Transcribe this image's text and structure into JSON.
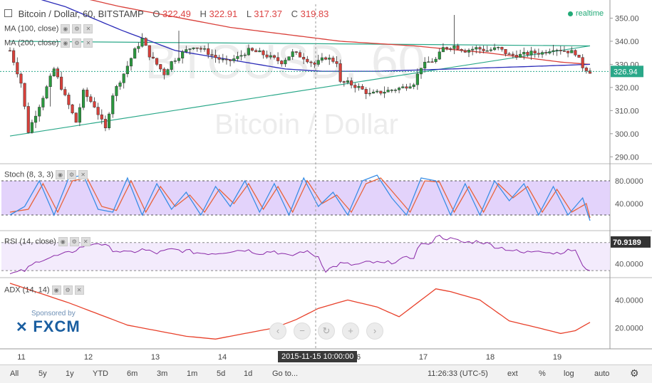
{
  "header": {
    "symbol": "Bitcoin / Dollar, 60, BITSTAMP",
    "o_label": "O",
    "o_value": "322.49",
    "h_label": "H",
    "h_value": "322.91",
    "l_label": "L",
    "l_value": "317.37",
    "c_label": "C",
    "c_value": "319.83",
    "realtime": "realtime",
    "ma1": "MA (100, close)",
    "ma2": "MA (200, close)"
  },
  "watermark": {
    "line1": "BTCUSD, 60",
    "line2": "Bitcoin / Dollar"
  },
  "panes": {
    "stoch": "Stoch (8, 3, 3)",
    "rsi": "RSI (14, close)",
    "adx": "ADX (14, 14)"
  },
  "sponsor": {
    "label": "Sponsored by",
    "brand": "FXCM"
  },
  "crosshair_time": "2015-11-15 10:00:00",
  "clock": "11:26:33 (UTC-5)",
  "bottom_left": [
    "All",
    "5y",
    "1y",
    "YTD",
    "6m",
    "3m",
    "1m",
    "5d",
    "1d",
    "Go to..."
  ],
  "bottom_right": [
    "ext",
    "%",
    "log",
    "auto"
  ],
  "colors": {
    "up": "#2b9a3f",
    "down": "#d9403a",
    "ma100": "#2b2bb8",
    "ma200": "#d9403a",
    "trend": "#2aa889",
    "stoch_k": "#3a8ee6",
    "stoch_d": "#e8643c",
    "band": "#e3d3fb",
    "rsi": "#8a2aa8",
    "adx": "#e8402a"
  },
  "chart_data": {
    "type": "candlestick",
    "x_ticks": [
      "11",
      "12",
      "13",
      "14",
      "15",
      "16",
      "17",
      "18",
      "19"
    ],
    "price_axis": {
      "ticks": [
        "290.00",
        "300.00",
        "310.00",
        "320.00",
        "330.00",
        "340.00",
        "350.00"
      ],
      "range": [
        287,
        356
      ],
      "last_price": "326.94"
    },
    "price_path": [
      [
        0,
        336
      ],
      [
        3,
        322
      ],
      [
        5,
        301
      ],
      [
        9,
        316
      ],
      [
        12,
        328
      ],
      [
        15,
        316
      ],
      [
        18,
        305
      ],
      [
        20,
        318
      ],
      [
        23,
        312
      ],
      [
        26,
        302
      ],
      [
        28,
        317
      ],
      [
        31,
        326
      ],
      [
        34,
        336
      ],
      [
        36,
        341
      ],
      [
        38,
        334
      ],
      [
        40,
        330
      ],
      [
        42,
        326
      ],
      [
        44,
        331
      ],
      [
        47,
        335
      ],
      [
        50,
        338
      ],
      [
        53,
        336
      ],
      [
        56,
        333
      ],
      [
        59,
        331
      ],
      [
        62,
        333
      ],
      [
        65,
        336
      ],
      [
        68,
        335
      ],
      [
        71,
        333
      ],
      [
        74,
        331
      ],
      [
        77,
        335
      ],
      [
        80,
        333
      ],
      [
        83,
        330
      ],
      [
        86,
        333
      ],
      [
        89,
        331
      ],
      [
        90,
        322
      ],
      [
        92,
        322
      ],
      [
        95,
        320
      ],
      [
        98,
        317
      ],
      [
        101,
        318
      ],
      [
        104,
        319
      ],
      [
        107,
        320
      ],
      [
        110,
        322
      ],
      [
        112,
        329
      ],
      [
        114,
        331
      ],
      [
        116,
        332
      ],
      [
        118,
        337
      ],
      [
        121,
        338
      ],
      [
        124,
        336
      ],
      [
        127,
        337
      ],
      [
        130,
        336
      ],
      [
        133,
        337
      ],
      [
        136,
        334
      ],
      [
        139,
        334
      ],
      [
        142,
        335
      ],
      [
        145,
        335
      ],
      [
        148,
        337
      ],
      [
        151,
        336
      ],
      [
        154,
        335
      ],
      [
        156,
        329
      ],
      [
        158,
        326.9
      ]
    ],
    "ma100": {
      "name": "MA (100, close)",
      "points": [
        [
          0,
          362
        ],
        [
          15,
          355
        ],
        [
          30,
          345
        ],
        [
          45,
          336
        ],
        [
          60,
          332
        ],
        [
          75,
          328
        ],
        [
          85,
          327
        ],
        [
          100,
          327
        ],
        [
          120,
          328
        ],
        [
          140,
          329
        ],
        [
          158,
          330
        ]
      ]
    },
    "ma200": {
      "name": "MA (200, close)",
      "points": [
        [
          0,
          366
        ],
        [
          30,
          355
        ],
        [
          60,
          346
        ],
        [
          90,
          340
        ],
        [
          110,
          338
        ],
        [
          130,
          335
        ],
        [
          150,
          331
        ],
        [
          158,
          330
        ]
      ]
    },
    "trendlines": [
      {
        "from": [
          0,
          299
        ],
        "to": [
          158,
          338
        ]
      },
      {
        "from": [
          0,
          340
        ],
        "to": [
          158,
          338
        ]
      }
    ],
    "stoch": {
      "ticks": [
        "40.0000",
        "80.0000"
      ],
      "range": [
        0,
        100
      ],
      "bands": [
        20,
        80
      ],
      "k": [
        [
          0,
          20
        ],
        [
          4,
          35
        ],
        [
          8,
          80
        ],
        [
          12,
          20
        ],
        [
          16,
          85
        ],
        [
          20,
          90
        ],
        [
          24,
          30
        ],
        [
          28,
          25
        ],
        [
          32,
          85
        ],
        [
          36,
          20
        ],
        [
          40,
          75
        ],
        [
          44,
          30
        ],
        [
          48,
          60
        ],
        [
          52,
          20
        ],
        [
          56,
          70
        ],
        [
          60,
          35
        ],
        [
          64,
          80
        ],
        [
          68,
          25
        ],
        [
          72,
          75
        ],
        [
          76,
          20
        ],
        [
          80,
          85
        ],
        [
          84,
          35
        ],
        [
          88,
          60
        ],
        [
          92,
          20
        ],
        [
          96,
          80
        ],
        [
          100,
          90
        ],
        [
          104,
          50
        ],
        [
          108,
          20
        ],
        [
          112,
          85
        ],
        [
          116,
          80
        ],
        [
          120,
          20
        ],
        [
          124,
          75
        ],
        [
          128,
          20
        ],
        [
          132,
          80
        ],
        [
          136,
          45
        ],
        [
          140,
          75
        ],
        [
          144,
          20
        ],
        [
          148,
          70
        ],
        [
          152,
          20
        ],
        [
          156,
          50
        ],
        [
          158,
          10
        ]
      ],
      "d": [
        [
          0,
          25
        ],
        [
          5,
          30
        ],
        [
          9,
          75
        ],
        [
          13,
          25
        ],
        [
          17,
          80
        ],
        [
          21,
          85
        ],
        [
          25,
          35
        ],
        [
          29,
          28
        ],
        [
          33,
          80
        ],
        [
          37,
          25
        ],
        [
          41,
          70
        ],
        [
          45,
          35
        ],
        [
          49,
          55
        ],
        [
          53,
          25
        ],
        [
          57,
          65
        ],
        [
          61,
          40
        ],
        [
          65,
          75
        ],
        [
          69,
          30
        ],
        [
          73,
          70
        ],
        [
          77,
          25
        ],
        [
          81,
          80
        ],
        [
          85,
          40
        ],
        [
          89,
          55
        ],
        [
          93,
          25
        ],
        [
          97,
          75
        ],
        [
          101,
          85
        ],
        [
          105,
          55
        ],
        [
          109,
          25
        ],
        [
          113,
          80
        ],
        [
          117,
          78
        ],
        [
          121,
          25
        ],
        [
          125,
          70
        ],
        [
          129,
          25
        ],
        [
          133,
          75
        ],
        [
          137,
          50
        ],
        [
          141,
          70
        ],
        [
          145,
          25
        ],
        [
          149,
          65
        ],
        [
          153,
          25
        ],
        [
          157,
          40
        ],
        [
          158,
          15
        ]
      ]
    },
    "rsi": {
      "last": "70.9189",
      "ticks": [
        "40.0000"
      ],
      "range": [
        20,
        85
      ],
      "bands": [
        30,
        70
      ],
      "values": [
        [
          0,
          25
        ],
        [
          4,
          30
        ],
        [
          8,
          45
        ],
        [
          12,
          50
        ],
        [
          16,
          55
        ],
        [
          20,
          65
        ],
        [
          24,
          70
        ],
        [
          28,
          60
        ],
        [
          32,
          55
        ],
        [
          36,
          60
        ],
        [
          40,
          55
        ],
        [
          44,
          60
        ],
        [
          48,
          58
        ],
        [
          52,
          55
        ],
        [
          56,
          55
        ],
        [
          60,
          58
        ],
        [
          64,
          60
        ],
        [
          68,
          55
        ],
        [
          72,
          58
        ],
        [
          76,
          50
        ],
        [
          80,
          58
        ],
        [
          84,
          50
        ],
        [
          86,
          30
        ],
        [
          90,
          40
        ],
        [
          94,
          38
        ],
        [
          98,
          42
        ],
        [
          102,
          40
        ],
        [
          106,
          45
        ],
        [
          110,
          50
        ],
        [
          112,
          70
        ],
        [
          114,
          65
        ],
        [
          116,
          80
        ],
        [
          120,
          75
        ],
        [
          124,
          70
        ],
        [
          128,
          72
        ],
        [
          132,
          65
        ],
        [
          136,
          60
        ],
        [
          140,
          55
        ],
        [
          144,
          60
        ],
        [
          148,
          55
        ],
        [
          152,
          58
        ],
        [
          154,
          60
        ],
        [
          156,
          35
        ],
        [
          158,
          32
        ]
      ]
    },
    "adx": {
      "ticks": [
        "20.0000",
        "40.0000"
      ],
      "range": [
        5,
        55
      ],
      "values": [
        [
          0,
          52
        ],
        [
          8,
          45
        ],
        [
          16,
          38
        ],
        [
          24,
          30
        ],
        [
          32,
          22
        ],
        [
          40,
          18
        ],
        [
          48,
          14
        ],
        [
          56,
          12
        ],
        [
          64,
          16
        ],
        [
          72,
          20
        ],
        [
          78,
          26
        ],
        [
          84,
          34
        ],
        [
          92,
          40
        ],
        [
          100,
          35
        ],
        [
          106,
          28
        ],
        [
          112,
          40
        ],
        [
          116,
          48
        ],
        [
          120,
          46
        ],
        [
          128,
          40
        ],
        [
          136,
          25
        ],
        [
          144,
          20
        ],
        [
          150,
          16
        ],
        [
          154,
          18
        ],
        [
          158,
          24
        ]
      ]
    }
  }
}
